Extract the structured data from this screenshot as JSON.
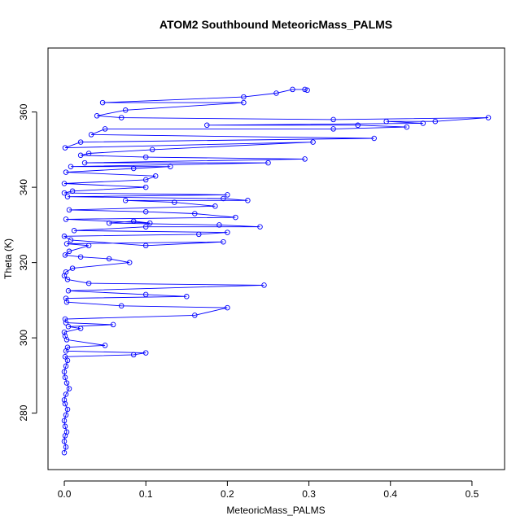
{
  "chart_data": {
    "type": "scatter",
    "title": "ATOM2 Southbound MeteoricMass_PALMS",
    "xlabel": "MeteoricMass_PALMS",
    "ylabel": "Theta (K)",
    "xlim": [
      -0.02,
      0.54
    ],
    "ylim": [
      265,
      377
    ],
    "x_ticks": [
      0.0,
      0.1,
      0.2,
      0.3,
      0.4,
      0.5
    ],
    "x_tick_labels": [
      "0.0",
      "0.1",
      "0.2",
      "0.3",
      "0.4",
      "0.5"
    ],
    "y_ticks": [
      280,
      300,
      320,
      340,
      360
    ],
    "y_tick_labels": [
      "280",
      "300",
      "320",
      "340",
      "360"
    ],
    "grid": false,
    "series": [
      {
        "name": "MeteoricMass_PALMS",
        "color": "#0000ff",
        "marker": "open-circle",
        "connected": true,
        "points": [
          [
            0.0,
            269.5
          ],
          [
            0.002,
            271.0
          ],
          [
            0.0,
            272.5
          ],
          [
            0.001,
            274.0
          ],
          [
            0.003,
            275.0
          ],
          [
            0.001,
            276.5
          ],
          [
            0.0,
            278.0
          ],
          [
            0.002,
            279.5
          ],
          [
            0.004,
            281.0
          ],
          [
            0.001,
            282.5
          ],
          [
            0.0,
            283.5
          ],
          [
            0.002,
            285.0
          ],
          [
            0.006,
            286.5
          ],
          [
            0.003,
            288.0
          ],
          [
            0.001,
            289.5
          ],
          [
            0.0,
            291.0
          ],
          [
            0.002,
            292.5
          ],
          [
            0.004,
            294.0
          ],
          [
            0.001,
            295.0
          ],
          [
            0.085,
            295.5
          ],
          [
            0.1,
            296.0
          ],
          [
            0.002,
            296.5
          ],
          [
            0.004,
            297.5
          ],
          [
            0.05,
            298.0
          ],
          [
            0.003,
            299.5
          ],
          [
            0.001,
            300.5
          ],
          [
            0.0,
            301.5
          ],
          [
            0.02,
            302.5
          ],
          [
            0.005,
            303.0
          ],
          [
            0.06,
            303.5
          ],
          [
            0.002,
            304.0
          ],
          [
            0.001,
            305.0
          ],
          [
            0.16,
            306.0
          ],
          [
            0.2,
            308.0
          ],
          [
            0.07,
            308.5
          ],
          [
            0.003,
            309.5
          ],
          [
            0.002,
            310.5
          ],
          [
            0.15,
            311.0
          ],
          [
            0.1,
            311.5
          ],
          [
            0.005,
            312.5
          ],
          [
            0.245,
            314.0
          ],
          [
            0.03,
            314.5
          ],
          [
            0.004,
            315.5
          ],
          [
            0.0,
            316.5
          ],
          [
            0.002,
            317.5
          ],
          [
            0.01,
            318.5
          ],
          [
            0.08,
            320.0
          ],
          [
            0.055,
            321.0
          ],
          [
            0.02,
            321.5
          ],
          [
            0.001,
            322.0
          ],
          [
            0.006,
            323.0
          ],
          [
            0.03,
            324.5
          ],
          [
            0.003,
            325.0
          ],
          [
            0.195,
            325.5
          ],
          [
            0.1,
            324.5
          ],
          [
            0.008,
            326.0
          ],
          [
            0.0,
            327.0
          ],
          [
            0.165,
            327.5
          ],
          [
            0.2,
            328.0
          ],
          [
            0.012,
            328.5
          ],
          [
            0.1,
            329.5
          ],
          [
            0.24,
            329.5
          ],
          [
            0.19,
            330.0
          ],
          [
            0.055,
            330.5
          ],
          [
            0.085,
            331.0
          ],
          [
            0.105,
            330.5
          ],
          [
            0.002,
            331.5
          ],
          [
            0.21,
            332.0
          ],
          [
            0.16,
            333.0
          ],
          [
            0.1,
            333.5
          ],
          [
            0.006,
            334.0
          ],
          [
            0.185,
            335.0
          ],
          [
            0.135,
            336.0
          ],
          [
            0.075,
            336.5
          ],
          [
            0.225,
            336.5
          ],
          [
            0.195,
            337.0
          ],
          [
            0.004,
            337.5
          ],
          [
            0.2,
            338.0
          ],
          [
            0.0,
            338.5
          ],
          [
            0.01,
            339.0
          ],
          [
            0.1,
            340.0
          ],
          [
            0.0,
            341.0
          ],
          [
            0.1,
            342.0
          ],
          [
            0.112,
            343.0
          ],
          [
            0.002,
            344.0
          ],
          [
            0.085,
            345.0
          ],
          [
            0.13,
            345.5
          ],
          [
            0.008,
            345.5
          ],
          [
            0.25,
            346.5
          ],
          [
            0.025,
            346.5
          ],
          [
            0.295,
            347.5
          ],
          [
            0.1,
            348.0
          ],
          [
            0.02,
            348.5
          ],
          [
            0.03,
            349.0
          ],
          [
            0.108,
            350.0
          ],
          [
            0.305,
            352.0
          ],
          [
            0.001,
            350.5
          ],
          [
            0.02,
            352.0
          ],
          [
            0.38,
            353.0
          ],
          [
            0.033,
            354.0
          ],
          [
            0.05,
            355.5
          ],
          [
            0.33,
            355.5
          ],
          [
            0.42,
            356.0
          ],
          [
            0.36,
            356.5
          ],
          [
            0.175,
            356.5
          ],
          [
            0.44,
            357.0
          ],
          [
            0.395,
            357.5
          ],
          [
            0.455,
            357.5
          ],
          [
            0.52,
            358.5
          ],
          [
            0.33,
            358.0
          ],
          [
            0.07,
            358.5
          ],
          [
            0.04,
            359.0
          ],
          [
            0.075,
            360.5
          ],
          [
            0.22,
            362.5
          ],
          [
            0.047,
            362.5
          ],
          [
            0.22,
            364.0
          ],
          [
            0.26,
            365.0
          ],
          [
            0.28,
            366.0
          ],
          [
            0.295,
            366.0
          ],
          [
            0.298,
            365.8
          ]
        ]
      }
    ]
  }
}
